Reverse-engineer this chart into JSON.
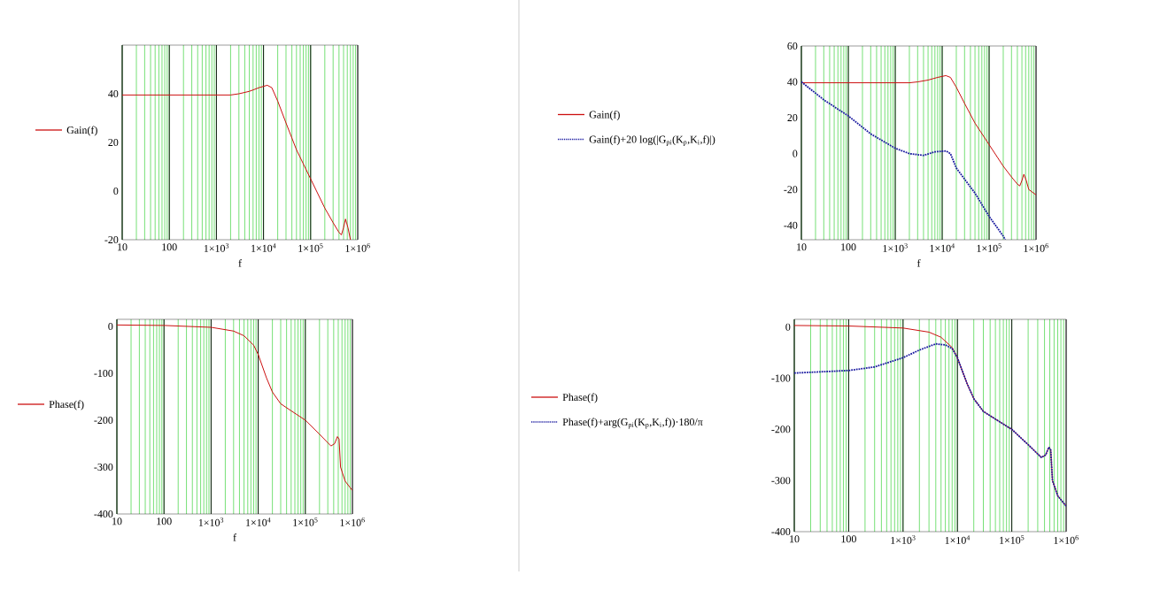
{
  "chart_data": [
    {
      "type": "line",
      "log": "x",
      "xlabel": "f",
      "grid": "x",
      "legend": "left",
      "xlim": [
        10,
        1000000
      ],
      "ylim": [
        -20,
        60
      ],
      "xticks": [
        10,
        100,
        {
          "value": 1000,
          "label": "1×10$^{3}$"
        },
        {
          "value": 10000,
          "label": "1×10$^{4}$"
        },
        {
          "value": 100000,
          "label": "1×10$^{5}$"
        },
        {
          "value": 1000000,
          "label": "1×10$^{6}$"
        }
      ],
      "yticks": [
        -20,
        0,
        20,
        40
      ],
      "series": [
        {
          "name": "Gain(f)",
          "color": "#cc1010",
          "line_style": "solid",
          "x": [
            10,
            100,
            1000,
            2000,
            3000,
            5000,
            8000,
            12000,
            15000,
            20000,
            30000,
            50000,
            100000,
            200000,
            300000,
            400000,
            450000,
            500000,
            550000,
            620000,
            700000
          ],
          "values": [
            39.5,
            39.5,
            39.5,
            39.5,
            40,
            41,
            42.5,
            43.5,
            42.5,
            37,
            28,
            17,
            5,
            -7,
            -13,
            -17,
            -18,
            -15,
            -11.5,
            -15,
            -20
          ]
        }
      ]
    },
    {
      "type": "line",
      "log": "x",
      "xlabel": "f",
      "grid": "x",
      "legend": "left",
      "xlim": [
        10,
        1000000
      ],
      "ylim": [
        -48,
        60
      ],
      "xticks": [
        10,
        100,
        {
          "value": 1000,
          "label": "1×10$^{3}$"
        },
        {
          "value": 10000,
          "label": "1×10$^{4}$"
        },
        {
          "value": 100000,
          "label": "1×10$^{5}$"
        },
        {
          "value": 1000000,
          "label": "1×10$^{6}$"
        }
      ],
      "yticks": [
        -40,
        -20,
        0,
        20,
        40,
        60
      ],
      "series": [
        {
          "name": "Gain(f)",
          "color": "#cc1010",
          "line_style": "solid",
          "x": [
            10,
            100,
            1000,
            2000,
            3000,
            5000,
            8000,
            12000,
            15000,
            20000,
            30000,
            50000,
            100000,
            200000,
            300000,
            400000,
            450000,
            500000,
            550000,
            620000,
            700000,
            1000000
          ],
          "values": [
            39.5,
            39.5,
            39.5,
            39.5,
            40,
            41,
            42.5,
            43.5,
            42.5,
            37,
            28,
            17,
            5,
            -7,
            -13,
            -17,
            -18,
            -15,
            -11.5,
            -15,
            -20,
            -23
          ]
        },
        {
          "name": "Gain(f)+20 log(|G$_{pi}$(K$_{p}$,K$_{i}$,f)|)",
          "color": "#1a1aa0",
          "line_style": "dotted",
          "x": [
            10,
            30,
            100,
            300,
            1000,
            2000,
            4000,
            7000,
            12000,
            15000,
            20000,
            50000,
            100000,
            200000,
            220000
          ],
          "values": [
            40,
            30,
            21,
            11,
            3,
            0,
            -1,
            1,
            1.5,
            0,
            -8,
            -22,
            -35,
            -46,
            -48
          ]
        }
      ]
    },
    {
      "type": "line",
      "log": "x",
      "xlabel": "f",
      "grid": "x",
      "legend": "left",
      "xlim": [
        10,
        1000000
      ],
      "ylim": [
        -400,
        15
      ],
      "xticks": [
        10,
        100,
        {
          "value": 1000,
          "label": "1×10$^{3}$"
        },
        {
          "value": 10000,
          "label": "1×10$^{4}$"
        },
        {
          "value": 100000,
          "label": "1×10$^{5}$"
        },
        {
          "value": 1000000,
          "label": "1×10$^{6}$"
        }
      ],
      "yticks": [
        -400,
        -300,
        -200,
        -100,
        0
      ],
      "series": [
        {
          "name": "Phase(f)",
          "color": "#cc1010",
          "line_style": "solid",
          "x": [
            10,
            100,
            1000,
            3000,
            5000,
            8000,
            10000,
            15000,
            20000,
            30000,
            50000,
            100000,
            200000,
            350000,
            420000,
            480000,
            520000,
            560000,
            700000,
            1000000
          ],
          "values": [
            3,
            2,
            -2,
            -10,
            -20,
            -40,
            -60,
            -110,
            -140,
            -165,
            -180,
            -200,
            -230,
            -255,
            -250,
            -235,
            -240,
            -300,
            -330,
            -350
          ]
        }
      ]
    },
    {
      "type": "line",
      "log": "x",
      "grid": "x",
      "legend": "left",
      "xlim": [
        10,
        1000000
      ],
      "ylim": [
        -400,
        15
      ],
      "xticks": [
        10,
        100,
        {
          "value": 1000,
          "label": "1×10$^{3}$"
        },
        {
          "value": 10000,
          "label": "1×10$^{4}$"
        },
        {
          "value": 100000,
          "label": "1×10$^{5}$"
        },
        {
          "value": 1000000,
          "label": "1×10$^{6}$"
        }
      ],
      "yticks": [
        -400,
        -300,
        -200,
        -100,
        0
      ],
      "series": [
        {
          "name": "Phase(f)",
          "color": "#cc1010",
          "line_style": "solid",
          "x": [
            10,
            100,
            1000,
            3000,
            5000,
            8000,
            10000,
            15000,
            20000,
            30000,
            50000,
            100000,
            200000,
            350000,
            420000,
            480000,
            520000,
            560000,
            700000,
            1000000
          ],
          "values": [
            3,
            2,
            -2,
            -10,
            -20,
            -40,
            -60,
            -110,
            -140,
            -165,
            -180,
            -200,
            -230,
            -255,
            -250,
            -235,
            -240,
            -300,
            -330,
            -350
          ]
        },
        {
          "name": "Phase(f)+arg(G$_{pi}$(K$_{p}$,K$_{i}$,f))·180/π",
          "color": "#1a1aa0",
          "line_style": "dotted",
          "x": [
            10,
            100,
            300,
            1000,
            2000,
            4000,
            6000,
            8000,
            10000,
            15000,
            20000,
            30000,
            50000,
            100000,
            200000,
            350000,
            420000,
            480000,
            520000,
            560000,
            700000,
            1000000
          ],
          "values": [
            -90,
            -85,
            -78,
            -60,
            -45,
            -33,
            -35,
            -42,
            -60,
            -110,
            -140,
            -165,
            -180,
            -200,
            -230,
            -255,
            -250,
            -235,
            -240,
            -300,
            -330,
            -350
          ]
        }
      ]
    }
  ]
}
